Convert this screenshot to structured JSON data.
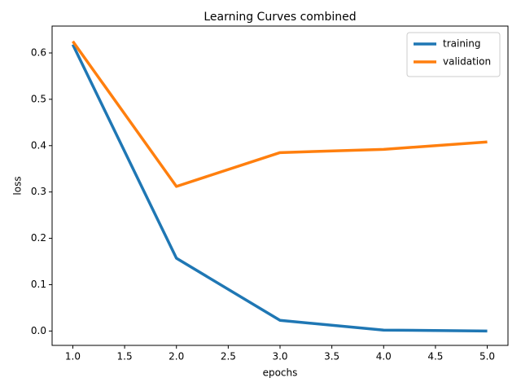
{
  "chart_data": {
    "type": "line",
    "title": "Learning Curves combined",
    "xlabel": "epochs",
    "ylabel": "loss",
    "x": [
      1,
      2,
      3,
      4,
      5
    ],
    "series": [
      {
        "name": "training",
        "color": "#1f77b4",
        "values": [
          0.618,
          0.157,
          0.023,
          0.002,
          0.0
        ]
      },
      {
        "name": "validation",
        "color": "#ff7f0e",
        "values": [
          0.625,
          0.312,
          0.385,
          0.392,
          0.408
        ]
      }
    ],
    "xlim": [
      0.8,
      5.2
    ],
    "xticks": [
      {
        "value": 1,
        "label": "1.0"
      },
      1.5,
      {
        "value": 2,
        "label": "2.0"
      },
      2.5,
      {
        "value": 3,
        "label": "3.0"
      },
      3.5,
      {
        "value": 4,
        "label": "4.0"
      },
      4.5,
      {
        "value": 5,
        "label": "5.0"
      }
    ],
    "ylim": [
      -0.031,
      0.658
    ],
    "yticks": [
      {
        "value": 0,
        "label": "0.0"
      },
      0.1,
      0.2,
      0.3,
      0.4,
      0.5,
      0.6
    ],
    "legend": "upper right"
  }
}
